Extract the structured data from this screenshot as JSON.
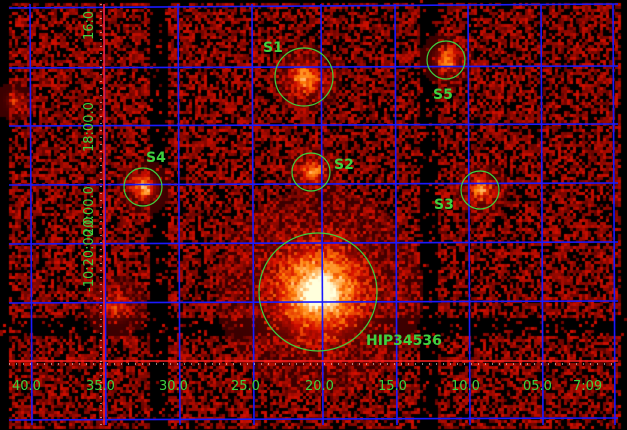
{
  "image": {
    "palette": {
      "background": "#000000",
      "grid": "#1a1aff",
      "axis": "#ff2020",
      "annotation": "#3fd13f"
    }
  },
  "sources": [
    {
      "id": "s1",
      "label": "S1"
    },
    {
      "id": "s2",
      "label": "S2"
    },
    {
      "id": "s3",
      "label": "S3"
    },
    {
      "id": "s4",
      "label": "S4"
    },
    {
      "id": "s5",
      "label": "S5"
    },
    {
      "id": "hip",
      "label": "HIP34536"
    }
  ],
  "axes": {
    "ra_ticks": [
      "40.0",
      "35.0",
      "30.0",
      "25.0",
      "20.0",
      "15.0",
      "10.0",
      "05.0",
      "7:09"
    ],
    "dec_ticks": [
      "16:0",
      "18:00.0",
      "20:00.0",
      "-10:20:00.0"
    ]
  }
}
